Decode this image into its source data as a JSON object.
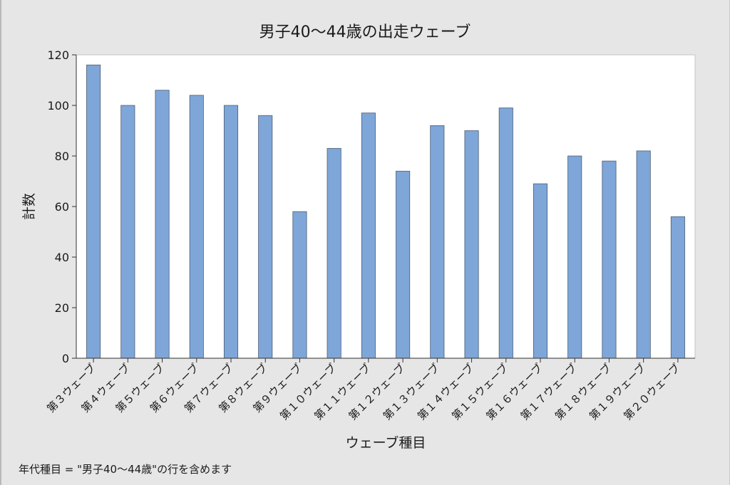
{
  "chart_data": {
    "type": "bar",
    "title": "男子40〜44歳の出走ウェーブ",
    "xlabel": "ウェーブ種目",
    "ylabel": "計数",
    "ylim": [
      0,
      120
    ],
    "yticks": [
      0,
      20,
      40,
      60,
      80,
      100,
      120
    ],
    "grid": false,
    "categories": [
      "第３ウェーブ",
      "第４ウェーブ",
      "第５ウェーブ",
      "第６ウェーブ",
      "第７ウェーブ",
      "第８ウェーブ",
      "第９ウェーブ",
      "第１０ウェーブ",
      "第１１ウェーブ",
      "第１２ウェーブ",
      "第１３ウェーブ",
      "第１４ウェーブ",
      "第１５ウェーブ",
      "第１６ウェーブ",
      "第１７ウェーブ",
      "第１８ウェーブ",
      "第１９ウェーブ",
      "第２０ウェーブ"
    ],
    "values": [
      116,
      100,
      106,
      104,
      100,
      96,
      58,
      83,
      97,
      74,
      92,
      90,
      99,
      69,
      80,
      78,
      82,
      56
    ],
    "colors": {
      "bar": "#7fa6d8",
      "bar_edge": "#4a5d75",
      "plot_bg": "#ffffff",
      "figure_bg": "#e6e6e6"
    }
  },
  "footnote": "年代種目 = \"男子40〜44歳\"の行を含めます"
}
